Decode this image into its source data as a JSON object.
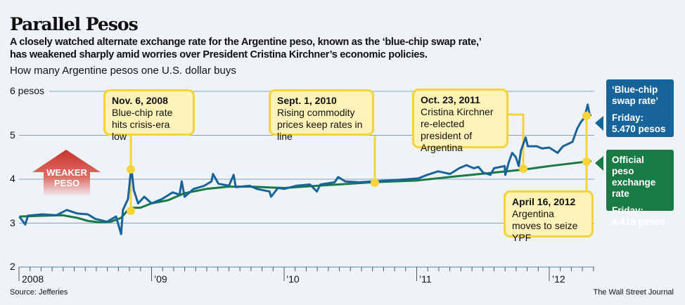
{
  "title": "Parallel Pesos",
  "subtitle_lines": [
    "A closely watched alternate exchange rate for the Argentine peso, known as the ‘blue-chip swap rate,’",
    "has weakened sharply amid worries over President Cristina Kirchner’s economic policies."
  ],
  "unit_label": "How many Argentine pesos one U.S. dollar buys",
  "weaker_arrow": {
    "line1": "WEAKER",
    "line2": "PESO"
  },
  "annotations": [
    {
      "date": "Nov. 6, 2008",
      "text": "Blue-chip rate hits crisis-era low"
    },
    {
      "date": "Sept. 1, 2010",
      "text": "Rising commodity prices keep rates in line"
    },
    {
      "date": "Oct. 23, 2011",
      "text": "Cristina Kirchner re-elected president of Argentina"
    },
    {
      "date": "April 16, 2012",
      "text": "Argentina moves to seize YPF"
    }
  ],
  "side_labels": {
    "blue": {
      "name": "‘Blue-chip swap rate’",
      "friday_label": "Friday:",
      "friday_value": "5.470 pesos"
    },
    "official": {
      "name": "Official peso exchange rate",
      "friday_label": "Friday:",
      "friday_value": "4.415 pesos"
    }
  },
  "source": "Source: Jefferies",
  "credit": "The Wall Street Journal",
  "colors": {
    "blue_chip": "#17649a",
    "official": "#1a7a44",
    "annotation": "#f5d33b",
    "background": "#eff3f8",
    "grid": "#7ea3c4",
    "arrow": "#c8332b"
  },
  "chart_data": {
    "type": "line",
    "ylim": [
      2,
      6
    ],
    "yticks": [
      "6 pesos",
      "5",
      "4",
      "3",
      "2"
    ],
    "ytick_values": [
      6,
      5,
      4,
      3,
      2
    ],
    "xticks": [
      "2008",
      "’09",
      "’10",
      "’11",
      "’12"
    ],
    "xlim": [
      "2008-01-01",
      "2012-05-01"
    ],
    "grid": true,
    "series": [
      {
        "name": "‘Blue-chip swap rate’",
        "color": "#17649a",
        "points": [
          [
            "2008-01-02",
            3.15
          ],
          [
            "2008-01-18",
            2.97
          ],
          [
            "2008-01-26",
            3.17
          ],
          [
            "2008-03-05",
            3.2
          ],
          [
            "2008-04-13",
            3.18
          ],
          [
            "2008-05-12",
            3.3
          ],
          [
            "2008-06-10",
            3.22
          ],
          [
            "2008-07-09",
            3.2
          ],
          [
            "2008-07-29",
            3.1
          ],
          [
            "2008-08-31",
            3.03
          ],
          [
            "2008-09-25",
            3.15
          ],
          [
            "2008-10-09",
            2.75
          ],
          [
            "2008-10-14",
            3.3
          ],
          [
            "2008-10-28",
            3.55
          ],
          [
            "2008-11-06",
            4.28
          ],
          [
            "2008-11-13",
            3.75
          ],
          [
            "2008-11-25",
            3.45
          ],
          [
            "2008-12-12",
            3.6
          ],
          [
            "2009-01-01",
            3.45
          ],
          [
            "2009-01-30",
            3.55
          ],
          [
            "2009-02-28",
            3.7
          ],
          [
            "2009-03-19",
            3.65
          ],
          [
            "2009-03-25",
            3.95
          ],
          [
            "2009-04-02",
            3.6
          ],
          [
            "2009-04-27",
            3.78
          ],
          [
            "2009-05-26",
            3.85
          ],
          [
            "2009-06-15",
            3.95
          ],
          [
            "2009-06-19",
            4.12
          ],
          [
            "2009-07-04",
            3.9
          ],
          [
            "2009-08-02",
            3.85
          ],
          [
            "2009-08-15",
            4.1
          ],
          [
            "2009-08-21",
            3.82
          ],
          [
            "2009-09-28",
            3.85
          ],
          [
            "2009-10-18",
            3.78
          ],
          [
            "2009-11-22",
            3.72
          ],
          [
            "2009-11-26",
            3.6
          ],
          [
            "2009-12-15",
            3.8
          ],
          [
            "2010-01-01",
            3.78
          ],
          [
            "2010-02-03",
            3.85
          ],
          [
            "2010-03-13",
            3.88
          ],
          [
            "2010-04-01",
            3.72
          ],
          [
            "2010-04-11",
            3.88
          ],
          [
            "2010-05-20",
            3.93
          ],
          [
            "2010-05-30",
            4.05
          ],
          [
            "2010-06-18",
            3.95
          ],
          [
            "2010-07-27",
            3.93
          ],
          [
            "2010-09-01",
            3.95
          ],
          [
            "2010-10-31",
            3.98
          ],
          [
            "2010-12-08",
            4.0
          ],
          [
            "2011-01-06",
            4.02
          ],
          [
            "2011-01-30",
            4.1
          ],
          [
            "2011-03-01",
            4.18
          ],
          [
            "2011-04-03",
            4.12
          ],
          [
            "2011-04-28",
            4.25
          ],
          [
            "2011-05-18",
            4.32
          ],
          [
            "2011-06-07",
            4.25
          ],
          [
            "2011-06-20",
            4.28
          ],
          [
            "2011-07-03",
            4.15
          ],
          [
            "2011-07-23",
            4.1
          ],
          [
            "2011-08-02",
            4.25
          ],
          [
            "2011-08-31",
            4.3
          ],
          [
            "2011-09-02",
            4.1
          ],
          [
            "2011-09-12",
            4.4
          ],
          [
            "2011-09-21",
            4.6
          ],
          [
            "2011-10-01",
            4.5
          ],
          [
            "2011-10-09",
            4.3
          ],
          [
            "2011-10-15",
            4.65
          ],
          [
            "2011-10-28",
            4.95
          ],
          [
            "2011-11-03",
            4.75
          ],
          [
            "2011-11-28",
            4.75
          ],
          [
            "2011-12-12",
            4.7
          ],
          [
            "2012-01-01",
            4.72
          ],
          [
            "2012-01-24",
            4.6
          ],
          [
            "2012-02-08",
            4.75
          ],
          [
            "2012-03-05",
            4.85
          ],
          [
            "2012-03-18",
            5.15
          ],
          [
            "2012-03-28",
            5.3
          ],
          [
            "2012-04-07",
            5.4
          ],
          [
            "2012-04-16",
            5.7
          ],
          [
            "2012-04-22",
            5.45
          ],
          [
            "2012-04-26",
            5.47
          ]
        ]
      },
      {
        "name": "Official peso exchange rate",
        "color": "#1a7a44",
        "points": [
          [
            "2008-01-02",
            3.15
          ],
          [
            "2008-03-15",
            3.17
          ],
          [
            "2008-05-01",
            3.18
          ],
          [
            "2008-06-10",
            3.12
          ],
          [
            "2008-07-10",
            3.05
          ],
          [
            "2008-08-10",
            3.02
          ],
          [
            "2008-09-10",
            3.03
          ],
          [
            "2008-10-09",
            3.12
          ],
          [
            "2008-10-28",
            3.3
          ],
          [
            "2008-11-06",
            3.35
          ],
          [
            "2008-12-01",
            3.35
          ],
          [
            "2009-01-01",
            3.45
          ],
          [
            "2009-02-15",
            3.52
          ],
          [
            "2009-04-01",
            3.68
          ],
          [
            "2009-06-01",
            3.78
          ],
          [
            "2009-08-01",
            3.83
          ],
          [
            "2009-10-01",
            3.83
          ],
          [
            "2010-01-01",
            3.8
          ],
          [
            "2010-04-01",
            3.85
          ],
          [
            "2010-09-01",
            3.93
          ],
          [
            "2011-01-01",
            3.97
          ],
          [
            "2011-04-01",
            4.05
          ],
          [
            "2011-08-01",
            4.15
          ],
          [
            "2011-10-23",
            4.22
          ],
          [
            "2012-01-01",
            4.3
          ],
          [
            "2012-04-26",
            4.415
          ]
        ]
      }
    ]
  }
}
